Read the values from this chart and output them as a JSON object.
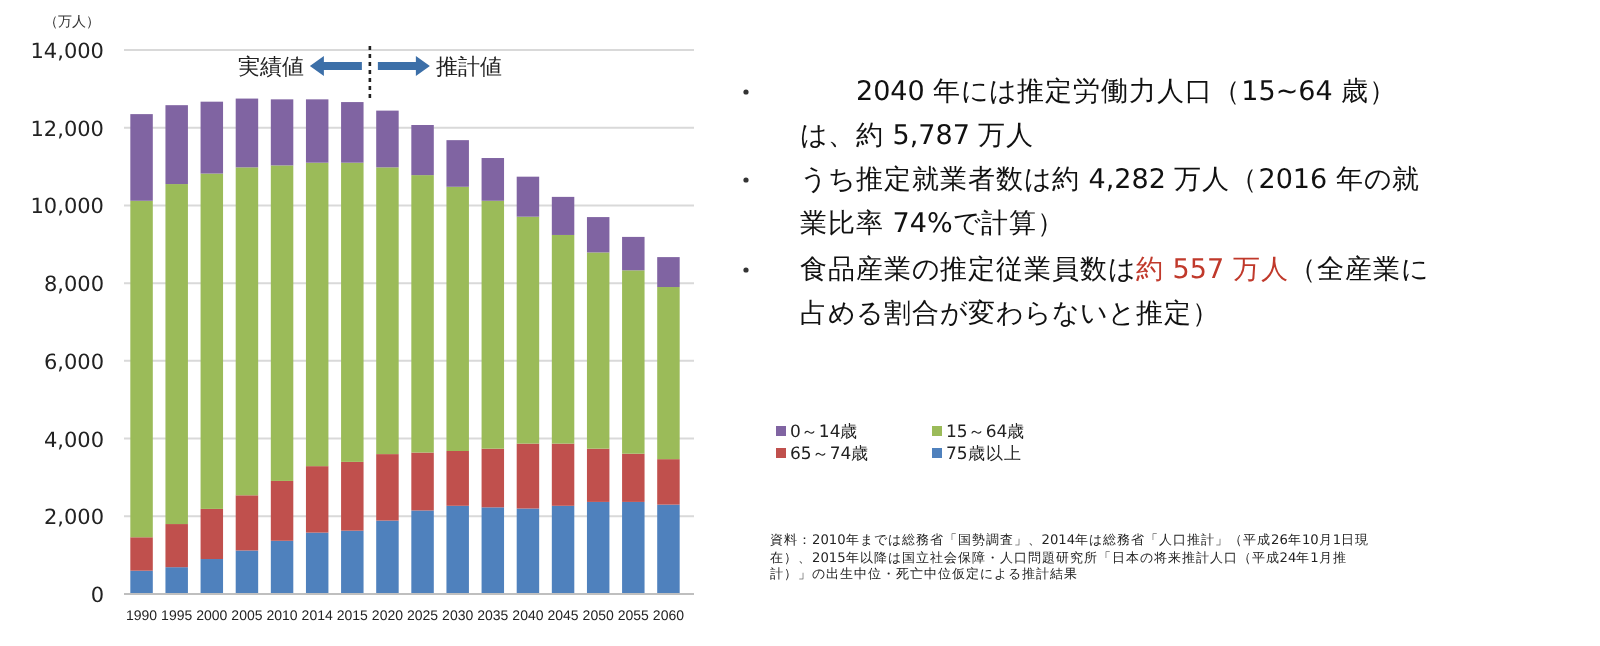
{
  "chart_data": {
    "type": "bar",
    "stacked": true,
    "ylabel": "（万人）",
    "categories": [
      "1990",
      "1995",
      "2000",
      "2005",
      "2010",
      "2014",
      "2015",
      "2020",
      "2025",
      "2030",
      "2035",
      "2040",
      "2045",
      "2050",
      "2055",
      "2060"
    ],
    "series": [
      {
        "name": "75歳以上",
        "color": "#4f81bd",
        "values": [
          600,
          690,
          900,
          1120,
          1370,
          1580,
          1630,
          1890,
          2150,
          2270,
          2230,
          2200,
          2270,
          2370,
          2370,
          2300
        ]
      },
      {
        "name": "65～74歳",
        "color": "#c0504d",
        "values": [
          860,
          1110,
          1290,
          1420,
          1540,
          1710,
          1770,
          1710,
          1490,
          1410,
          1510,
          1670,
          1600,
          1370,
          1240,
          1170
        ]
      },
      {
        "name": "15～64歳",
        "color": "#9bbb59",
        "values": [
          8660,
          8750,
          8630,
          8440,
          8120,
          7810,
          7700,
          7380,
          7140,
          6800,
          6380,
          5840,
          5370,
          5050,
          4720,
          4430
        ]
      },
      {
        "name": "0～14歳",
        "color": "#8064a2",
        "values": [
          2230,
          2030,
          1850,
          1770,
          1700,
          1630,
          1560,
          1460,
          1290,
          1200,
          1100,
          1030,
          980,
          910,
          860,
          770
        ]
      }
    ],
    "ylim": [
      0,
      14000
    ],
    "yticks": [
      0,
      {
        "value": 2000,
        "label": "2,000"
      },
      {
        "value": 4000,
        "label": "4,000"
      },
      {
        "value": 6000,
        "label": "6,000"
      },
      {
        "value": 8000,
        "label": "8,000"
      },
      {
        "value": 10000,
        "label": "10,000"
      },
      {
        "value": 12000,
        "label": "12,000"
      },
      {
        "value": 14000,
        "label": "14,000"
      }
    ],
    "grid": "y",
    "legend": "bottom right",
    "annotations": [
      "実績値",
      "推計値",
      "2040 年には推定労働力人口（15~64 歳）は、約 5,787 万人",
      "うち推定就業者数は約 4,282 万人（2016 年の就業比率 74%で計算）",
      "食品産業の推定従業員数は",
      "約 557 万人",
      "（全産業に占める割合が変わらないと推定）",
      "資料：2010年までは総務省「国勢調査」、2014年は総務省「人口推計」（平成26年10月1日現在）、2015年以降は国立社会保障・人口問題研究所「日本の将来推計人口（平成24年1月推計）」の出生中位・死亡中位仮定による推計結果"
    ]
  }
}
